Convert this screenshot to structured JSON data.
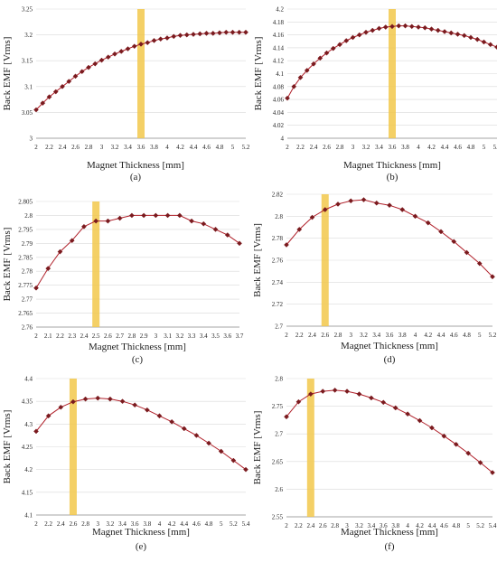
{
  "figure": {
    "colors": {
      "line": "#b0202a",
      "marker": "#7a1a1e",
      "highlight": "#f2c84b",
      "grid": "#d9d9d9",
      "axis": "#8c8c8c"
    }
  },
  "chart_data": [
    {
      "type": "line",
      "caption": "(a)",
      "xlabel": "Magnet Thickness [mm]",
      "ylabel": "Back EMF [Vrms]",
      "xlim": [
        2,
        5.2
      ],
      "ylim": [
        3,
        3.25
      ],
      "xticks": [
        "2",
        "2.2",
        "2.4",
        "2.6",
        "2.8",
        "3",
        "3.2",
        "3.4",
        "3.6",
        "3.8",
        "4",
        "4.2",
        "4.4",
        "4.6",
        "4.8",
        "5",
        "5.2"
      ],
      "yticks": [
        "3",
        "3.05",
        "3.1",
        "3.15",
        "3.2",
        "3.25"
      ],
      "highlight_x": 3.6,
      "x": [
        2,
        2.1,
        2.2,
        2.3,
        2.4,
        2.5,
        2.6,
        2.7,
        2.8,
        2.9,
        3,
        3.1,
        3.2,
        3.3,
        3.4,
        3.5,
        3.6,
        3.7,
        3.8,
        3.9,
        4,
        4.1,
        4.2,
        4.3,
        4.4,
        4.5,
        4.6,
        4.7,
        4.8,
        4.9,
        5,
        5.1,
        5.2
      ],
      "y": [
        3.055,
        3.068,
        3.08,
        3.09,
        3.1,
        3.11,
        3.12,
        3.129,
        3.137,
        3.144,
        3.151,
        3.157,
        3.163,
        3.168,
        3.173,
        3.178,
        3.182,
        3.185,
        3.189,
        3.192,
        3.194,
        3.197,
        3.199,
        3.2,
        3.201,
        3.202,
        3.203,
        3.203,
        3.204,
        3.205,
        3.205,
        3.205,
        3.205
      ]
    },
    {
      "type": "line",
      "caption": "(b)",
      "xlabel": "Magnet Thickness [mm]",
      "ylabel": "Back EMF [Vrms]",
      "xlim": [
        2,
        5.2
      ],
      "ylim": [
        4,
        4.2
      ],
      "xticks": [
        "2",
        "2.2",
        "2.4",
        "2.6",
        "2.8",
        "3",
        "3.2",
        "3.4",
        "3.6",
        "3.8",
        "4",
        "4.2",
        "4.4",
        "4.6",
        "4.8",
        "5",
        "5.2"
      ],
      "yticks": [
        "4",
        "4.02",
        "4.04",
        "4.06",
        "4.08",
        "4.1",
        "4.12",
        "4.14",
        "4.16",
        "4.18",
        "4.2"
      ],
      "highlight_x": 3.6,
      "x": [
        2,
        2.1,
        2.2,
        2.3,
        2.4,
        2.5,
        2.6,
        2.7,
        2.8,
        2.9,
        3,
        3.1,
        3.2,
        3.3,
        3.4,
        3.5,
        3.6,
        3.7,
        3.8,
        3.9,
        4,
        4.1,
        4.2,
        4.3,
        4.4,
        4.5,
        4.6,
        4.7,
        4.8,
        4.9,
        5,
        5.1,
        5.2
      ],
      "y": [
        4.062,
        4.08,
        4.094,
        4.105,
        4.115,
        4.124,
        4.132,
        4.139,
        4.145,
        4.151,
        4.156,
        4.16,
        4.164,
        4.167,
        4.17,
        4.172,
        4.173,
        4.174,
        4.174,
        4.173,
        4.172,
        4.171,
        4.169,
        4.167,
        4.165,
        4.163,
        4.161,
        4.159,
        4.156,
        4.153,
        4.149,
        4.145,
        4.141
      ]
    },
    {
      "type": "line",
      "caption": "(c)",
      "xlabel": "Magnet Thickness [mm]",
      "ylabel": "Back EMF [Vrms]",
      "xlim": [
        2,
        3.7
      ],
      "ylim": [
        2.76,
        2.805
      ],
      "xticks": [
        "2",
        "2.1",
        "2.2",
        "2.3",
        "2.4",
        "2.5",
        "2.6",
        "2.7",
        "2.8",
        "2.9",
        "3",
        "3.1",
        "3.2",
        "3.3",
        "3.4",
        "3.5",
        "3.6",
        "3.7"
      ],
      "yticks": [
        "2.76",
        "2.765",
        "2.77",
        "2.775",
        "2.78",
        "2.785",
        "2.79",
        "2.795",
        "2.8",
        "2.805"
      ],
      "highlight_x": 2.5,
      "x": [
        2,
        2.1,
        2.2,
        2.3,
        2.4,
        2.5,
        2.6,
        2.7,
        2.8,
        2.9,
        3,
        3.1,
        3.2,
        3.3,
        3.4,
        3.5,
        3.6,
        3.7
      ],
      "y": [
        2.774,
        2.781,
        2.787,
        2.791,
        2.796,
        2.798,
        2.798,
        2.799,
        2.8,
        2.8,
        2.8,
        2.8,
        2.8,
        2.798,
        2.797,
        2.795,
        2.793,
        2.79
      ]
    },
    {
      "type": "line",
      "caption": "(d)",
      "xlabel": "Magnet Thickness [mm]",
      "ylabel": "Back EMF [Vrms]",
      "xlim": [
        2,
        5.2
      ],
      "ylim": [
        2.7,
        2.82
      ],
      "xticks": [
        "2",
        "2.2",
        "2.4",
        "2.6",
        "2.8",
        "3",
        "3.2",
        "3.4",
        "3.6",
        "3.8",
        "4",
        "4.2",
        "4.4",
        "4.6",
        "4.8",
        "5",
        "5.2"
      ],
      "yticks": [
        "2.7",
        "2.72",
        "2.74",
        "2.76",
        "2.78",
        "2.8",
        "2.82"
      ],
      "highlight_x": 2.6,
      "x": [
        2,
        2.2,
        2.4,
        2.6,
        2.8,
        3,
        3.2,
        3.4,
        3.6,
        3.8,
        4,
        4.2,
        4.4,
        4.6,
        4.8,
        5,
        5.2
      ],
      "y": [
        2.774,
        2.788,
        2.799,
        2.806,
        2.811,
        2.814,
        2.815,
        2.812,
        2.81,
        2.806,
        2.8,
        2.794,
        2.786,
        2.777,
        2.767,
        2.757,
        2.745
      ]
    },
    {
      "type": "line",
      "caption": "(e)",
      "xlabel": "Magnet Thickness [mm]",
      "ylabel": "Back EMF [Vrms]",
      "xlim": [
        2,
        5.4
      ],
      "ylim": [
        4.1,
        4.4
      ],
      "xticks": [
        "2",
        "2.2",
        "2.4",
        "2.6",
        "2.8",
        "3",
        "3.2",
        "3.4",
        "3.6",
        "3.8",
        "4",
        "4.2",
        "4.4",
        "4.6",
        "4.8",
        "5",
        "5.2",
        "5.4"
      ],
      "yticks": [
        "4.1",
        "4.15",
        "4.2",
        "4.25",
        "4.3",
        "4.35",
        "4.4"
      ],
      "highlight_x": 2.6,
      "x": [
        2,
        2.2,
        2.4,
        2.6,
        2.8,
        3,
        3.2,
        3.4,
        3.6,
        3.8,
        4,
        4.2,
        4.4,
        4.6,
        4.8,
        5,
        5.2,
        5.4
      ],
      "y": [
        4.284,
        4.318,
        4.337,
        4.349,
        4.355,
        4.357,
        4.355,
        4.35,
        4.342,
        4.331,
        4.318,
        4.305,
        4.29,
        4.275,
        4.258,
        4.24,
        4.22,
        4.2
      ]
    },
    {
      "type": "line",
      "caption": "(f)",
      "xlabel": "Magnet Thickness [mm]",
      "ylabel": "Back EMF [Vrms]",
      "xlim": [
        2,
        5.4
      ],
      "ylim": [
        2.55,
        2.8
      ],
      "xticks": [
        "2",
        "2.2",
        "2.4",
        "2.6",
        "2.8",
        "3",
        "3.2",
        "3.4",
        "3.6",
        "3.8",
        "4",
        "4.2",
        "4.4",
        "4.6",
        "4.8",
        "5",
        "5.2",
        "5.4"
      ],
      "yticks": [
        "2.55",
        "2.6",
        "2.65",
        "2.7",
        "2.75",
        "2.8"
      ],
      "highlight_x": 2.4,
      "x": [
        2,
        2.2,
        2.4,
        2.6,
        2.8,
        3,
        3.2,
        3.4,
        3.6,
        3.8,
        4,
        4.2,
        4.4,
        4.6,
        4.8,
        5,
        5.2,
        5.4
      ],
      "y": [
        2.731,
        2.758,
        2.772,
        2.777,
        2.779,
        2.777,
        2.772,
        2.765,
        2.757,
        2.747,
        2.736,
        2.724,
        2.711,
        2.696,
        2.681,
        2.665,
        2.648,
        2.63
      ]
    }
  ]
}
